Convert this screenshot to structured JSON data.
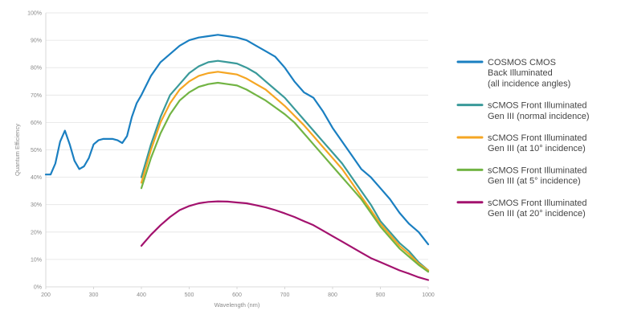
{
  "chart_data": {
    "type": "line",
    "title": "",
    "xlabel": "Wavelength (nm)",
    "ylabel": "Quantum Efficiency",
    "xlim": [
      200,
      1000
    ],
    "ylim": [
      0,
      100
    ],
    "xticks": [
      200,
      300,
      400,
      500,
      600,
      700,
      800,
      900,
      1000
    ],
    "yticks": [
      "0%",
      "10%",
      "20%",
      "30%",
      "40%",
      "50%",
      "60%",
      "70%",
      "80%",
      "90%",
      "100%"
    ],
    "grid": "horizontal",
    "legend_position": "right",
    "series": [
      {
        "name": "COSMOS CMOS",
        "name_lines": [
          "COSMOS CMOS",
          "Back Illuminated",
          "(all incidence angles)"
        ],
        "color": "#1a7fc1",
        "x": [
          200,
          210,
          220,
          230,
          240,
          250,
          260,
          270,
          280,
          290,
          300,
          310,
          320,
          330,
          340,
          350,
          360,
          370,
          380,
          390,
          400,
          420,
          440,
          460,
          480,
          500,
          520,
          540,
          560,
          580,
          600,
          620,
          640,
          660,
          680,
          700,
          720,
          740,
          760,
          780,
          800,
          820,
          840,
          860,
          880,
          900,
          920,
          940,
          960,
          980,
          1000
        ],
        "y": [
          41,
          41,
          45,
          53,
          57,
          52,
          46,
          43,
          44,
          47,
          52,
          53.5,
          54,
          54,
          54,
          53.5,
          52.5,
          55,
          62,
          67,
          70,
          77,
          82,
          85,
          88,
          90,
          91,
          91.5,
          92,
          91.5,
          91,
          90,
          88,
          86,
          84,
          80,
          75,
          71,
          69,
          64,
          58,
          53,
          48,
          43,
          40,
          36,
          32,
          27,
          23,
          20,
          15.5
        ]
      },
      {
        "name": "sCMOS Front Illuminated Gen III (normal incidence)",
        "name_lines": [
          "sCMOS Front Illuminated",
          "Gen III (normal incidence)"
        ],
        "color": "#3a9a9a",
        "x": [
          400,
          420,
          440,
          460,
          480,
          500,
          520,
          540,
          560,
          580,
          600,
          620,
          640,
          660,
          680,
          700,
          720,
          740,
          760,
          780,
          800,
          820,
          840,
          860,
          880,
          900,
          920,
          940,
          960,
          980,
          1000
        ],
        "y": [
          40,
          52,
          62,
          70,
          74,
          78,
          80.5,
          82,
          82.5,
          82,
          81.5,
          80,
          78,
          75,
          72,
          69,
          65,
          61,
          57,
          53,
          49,
          45,
          40,
          35,
          30,
          24,
          20,
          16,
          13,
          9,
          6
        ]
      },
      {
        "name": "sCMOS Front Illuminated Gen III (at 10° incidence)",
        "name_lines": [
          "sCMOS Front Illuminated",
          "Gen III (at 10° incidence)"
        ],
        "color": "#f5a623",
        "x": [
          400,
          420,
          440,
          460,
          480,
          500,
          520,
          540,
          560,
          580,
          600,
          620,
          640,
          660,
          680,
          700,
          720,
          740,
          760,
          780,
          800,
          820,
          840,
          860,
          880,
          900,
          920,
          940,
          960,
          980,
          1000
        ],
        "y": [
          38,
          50,
          60,
          67,
          72,
          75,
          77,
          78,
          78.5,
          78,
          77.5,
          76,
          74,
          72,
          69,
          66,
          62.5,
          59,
          55,
          51,
          47,
          43,
          38,
          33,
          28,
          23,
          19,
          15,
          12,
          8.5,
          6
        ]
      },
      {
        "name": "sCMOS Front Illuminated Gen III (at 5° incidence)",
        "name_lines": [
          "sCMOS Front Illuminated",
          "Gen III (at 5° incidence)"
        ],
        "color": "#72b444",
        "x": [
          400,
          420,
          440,
          460,
          480,
          500,
          520,
          540,
          560,
          580,
          600,
          620,
          640,
          660,
          680,
          700,
          720,
          740,
          760,
          780,
          800,
          820,
          840,
          860,
          880,
          900,
          920,
          940,
          960,
          980,
          1000
        ],
        "y": [
          36,
          47,
          56,
          63,
          68,
          71,
          73,
          74,
          74.5,
          74,
          73.5,
          72,
          70,
          68,
          65.5,
          63,
          60,
          56,
          52,
          48,
          44,
          40,
          36,
          32,
          27,
          22,
          18,
          14,
          11,
          8,
          5.5
        ]
      },
      {
        "name": "sCMOS Front Illuminated Gen III (at 20° incidence)",
        "name_lines": [
          "sCMOS Front Illuminated",
          "Gen III (at 20° incidence)"
        ],
        "color": "#a3126e",
        "x": [
          400,
          420,
          440,
          460,
          480,
          500,
          520,
          540,
          560,
          580,
          600,
          620,
          640,
          660,
          680,
          700,
          720,
          740,
          760,
          780,
          800,
          820,
          840,
          860,
          880,
          900,
          920,
          940,
          960,
          980,
          1000
        ],
        "y": [
          15,
          19,
          22.5,
          25.5,
          28,
          29.5,
          30.5,
          31,
          31.2,
          31.1,
          30.8,
          30.5,
          29.8,
          29,
          28,
          26.8,
          25.5,
          24,
          22.5,
          20.5,
          18.5,
          16.5,
          14.5,
          12.5,
          10.5,
          9,
          7.5,
          6,
          4.8,
          3.5,
          2.5
        ]
      }
    ]
  }
}
